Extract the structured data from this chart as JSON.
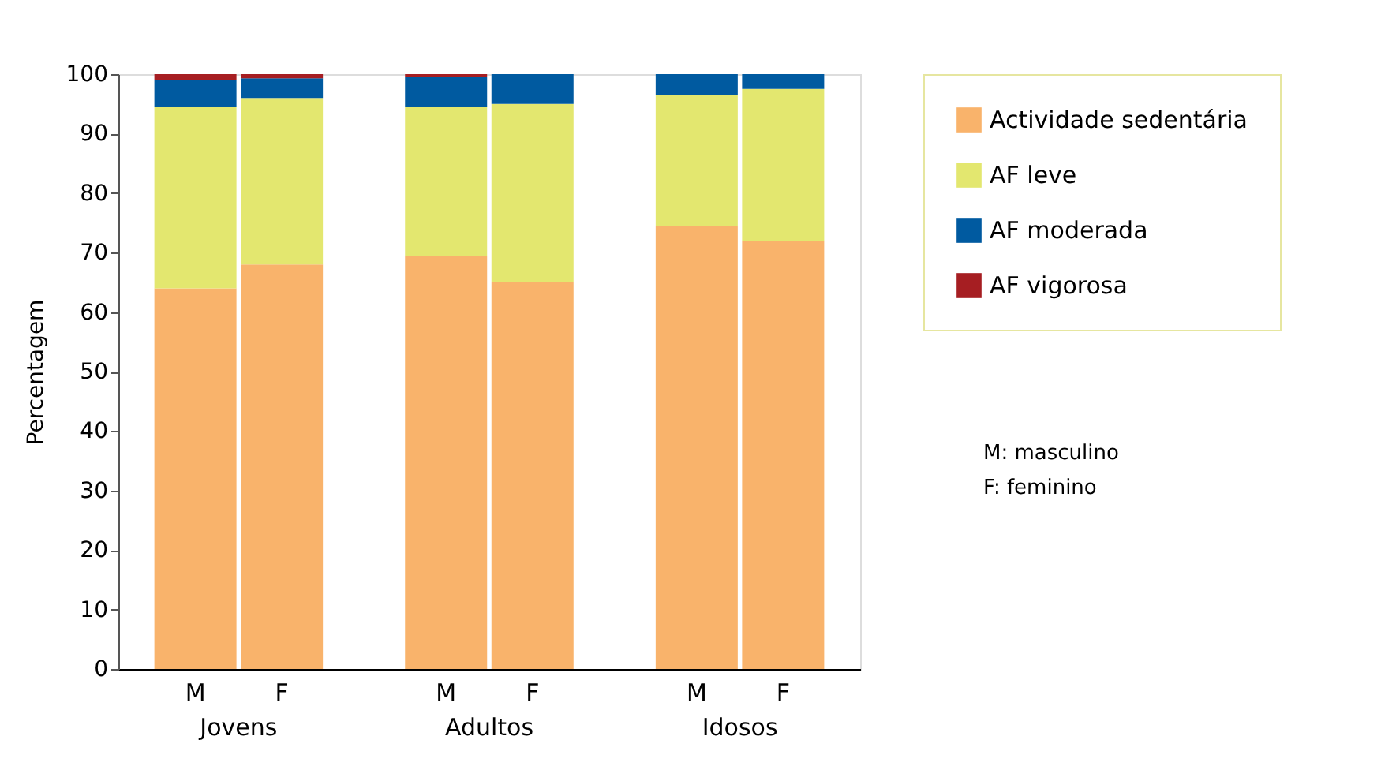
{
  "chart_data": {
    "type": "bar",
    "stacked": true,
    "ylabel": "Percentagem",
    "categories": [
      "M",
      "F",
      "M",
      "F",
      "M",
      "F"
    ],
    "series": [
      {
        "name": "Actividade sedentária",
        "color": "#f9b36b",
        "values": [
          64,
          68,
          69.5,
          65,
          74.5,
          72
        ]
      },
      {
        "name": "AF leve",
        "color": "#e3e76f",
        "values": [
          30.5,
          28,
          25,
          30,
          22,
          25.5
        ]
      },
      {
        "name": "AF moderada",
        "color": "#005aa0",
        "values": [
          4.5,
          3.3,
          5,
          5,
          3.5,
          2.5
        ]
      },
      {
        "name": "AF vigorosa",
        "color": "#a61e22",
        "values": [
          1,
          0.7,
          0.5,
          0,
          0,
          0
        ]
      }
    ],
    "ylim": [
      0,
      100
    ],
    "yticks": [
      0,
      10,
      20,
      30,
      40,
      50,
      60,
      70,
      80,
      90,
      100
    ],
    "grid": false,
    "legend": "right",
    "annotations": [
      "Jovens",
      "Adultos",
      "Idosos",
      "M: masculino",
      "F: feminino"
    ]
  }
}
